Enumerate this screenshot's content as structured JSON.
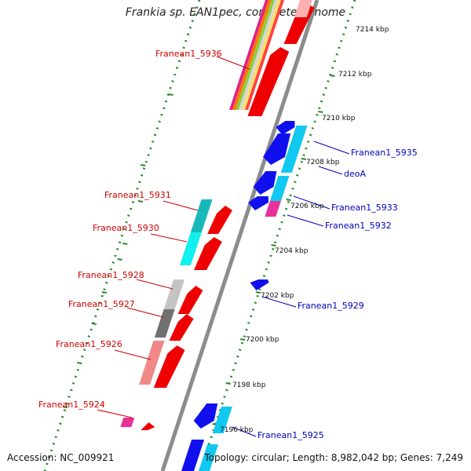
{
  "title": "Frankia sp. EAN1pec, complete genome",
  "accession": "Accession: NC_009921",
  "summary": "Topology: circular; Length: 8,982,042 bp; Genes: 7,249",
  "colors": {
    "backbone": "#8c8c8c",
    "tick_dots": "#2a8a2a",
    "minus_label": "#cc0000",
    "plus_label": "#0000bb"
  },
  "ticks": [
    {
      "label": "7214 kbp"
    },
    {
      "label": "7212 kbp"
    },
    {
      "label": "7210 kbp"
    },
    {
      "label": "7208 kbp"
    },
    {
      "label": "7206 kbp"
    },
    {
      "label": "7204 kbp"
    },
    {
      "label": "7202 kbp"
    },
    {
      "label": "7200 kbp"
    },
    {
      "label": "7198 kbp"
    },
    {
      "label": "7196 kbp"
    }
  ],
  "minus_labels": [
    {
      "text": "Franean1_5936"
    },
    {
      "text": "Franean1_5931"
    },
    {
      "text": "Franean1_5930"
    },
    {
      "text": "Franean1_5928"
    },
    {
      "text": "Franean1_5927"
    },
    {
      "text": "Franean1_5926"
    },
    {
      "text": "Franean1_5924"
    }
  ],
  "plus_labels": [
    {
      "text": "Franean1_5935"
    },
    {
      "text": "deoA"
    },
    {
      "text": "Franean1_5933"
    },
    {
      "text": "Franean1_5932"
    },
    {
      "text": "Franean1_5929"
    },
    {
      "text": "Franean1_5925"
    }
  ]
}
